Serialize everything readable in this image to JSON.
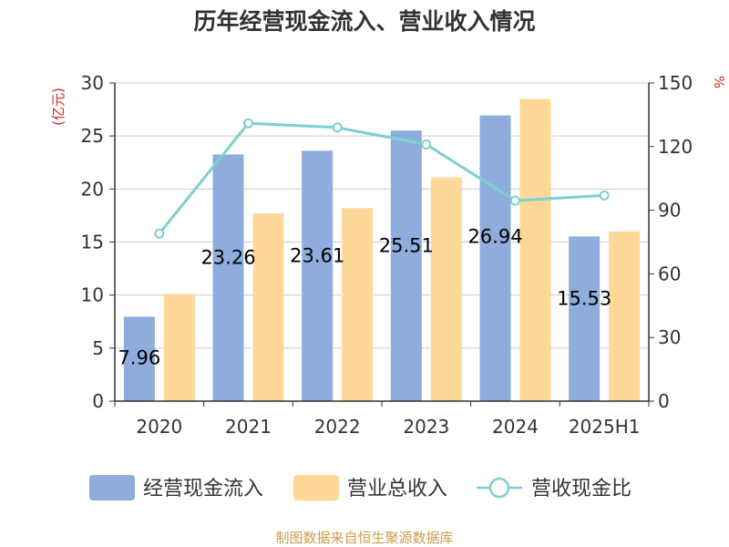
{
  "chart_data": {
    "type": "bar",
    "title": "历年经营现金流入、营业收入情况",
    "categories": [
      "2020",
      "2021",
      "2022",
      "2023",
      "2024",
      "2025H1"
    ],
    "series": [
      {
        "name": "经营现金流入",
        "type": "bar",
        "axis": "left",
        "color": "#8eaddc",
        "values": [
          7.96,
          23.26,
          23.61,
          25.51,
          26.94,
          15.53
        ],
        "data_labels": [
          "7.96",
          "23.26",
          "23.61",
          "25.51",
          "26.94",
          "15.53"
        ]
      },
      {
        "name": "营业总收入",
        "type": "bar",
        "axis": "left",
        "color": "#fdd899",
        "values": [
          10.1,
          17.7,
          18.2,
          21.1,
          28.5,
          16.0
        ]
      },
      {
        "name": "营收现金比",
        "type": "line",
        "axis": "right",
        "color": "#7fcfcf",
        "values": [
          79,
          131,
          129,
          121,
          94.5,
          97
        ]
      }
    ],
    "y_left": {
      "label": "(亿元)",
      "min": 0,
      "max": 30,
      "ticks": [
        "0",
        "5",
        "10",
        "15",
        "20",
        "25",
        "30"
      ]
    },
    "y_right": {
      "label": "%",
      "min": 0,
      "max": 150,
      "ticks": [
        "0",
        "30",
        "60",
        "90",
        "120",
        "150"
      ]
    },
    "grid": true,
    "legend": "bottom"
  },
  "source_note": "制图数据来自恒生聚源数据库",
  "colors": {
    "axis": "#333333",
    "grid": "#cccccc",
    "unit_red": "#d62728",
    "source": "#c8a04a",
    "title": "#333333"
  }
}
